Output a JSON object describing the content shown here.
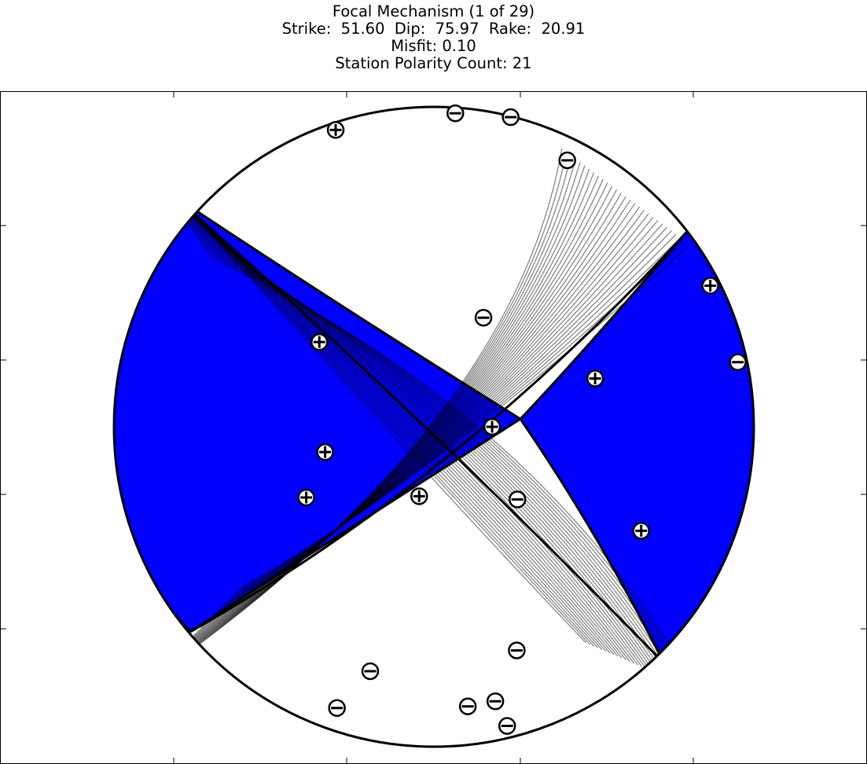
{
  "header": {
    "title": "Focal Mechanism (1 of 29)",
    "params": "Strike:  51.60  Dip:  75.97  Rake:  20.91",
    "misfit": "Misfit: 0.10",
    "station_count": "Station Polarity Count: 21"
  },
  "colors": {
    "fill": "#0000ff",
    "background": "#ffffff",
    "line": "#000000"
  },
  "chart_data": {
    "type": "scatter",
    "subtype": "focal-mechanism-beachball-lower-hemisphere",
    "title": "Focal Mechanism (1 of 29)",
    "best_solution": {
      "strike": 51.6,
      "dip": 75.97,
      "rake": 20.91,
      "misfit": 0.1
    },
    "solution_count": 29,
    "station_polarity_count": 21,
    "tick_labels": false,
    "stations": [
      {
        "polarity": "+",
        "x": -0.307,
        "y": 0.928
      },
      {
        "polarity": "-",
        "x": 0.067,
        "y": 0.98
      },
      {
        "polarity": "-",
        "x": 0.24,
        "y": 0.968
      },
      {
        "polarity": "-",
        "x": 0.417,
        "y": 0.833
      },
      {
        "polarity": "+",
        "x": 0.864,
        "y": 0.441
      },
      {
        "polarity": "-",
        "x": 0.155,
        "y": 0.341
      },
      {
        "polarity": "+",
        "x": -0.358,
        "y": 0.265
      },
      {
        "polarity": "+",
        "x": 0.504,
        "y": 0.151
      },
      {
        "polarity": "-",
        "x": 0.95,
        "y": 0.202
      },
      {
        "polarity": "+",
        "x": 0.182,
        "y": 0.0
      },
      {
        "polarity": "+",
        "x": -0.34,
        "y": -0.079
      },
      {
        "polarity": "+",
        "x": -0.399,
        "y": -0.221
      },
      {
        "polarity": "+",
        "x": -0.046,
        "y": -0.217
      },
      {
        "polarity": "-",
        "x": 0.261,
        "y": -0.227
      },
      {
        "polarity": "+",
        "x": 0.648,
        "y": -0.325
      },
      {
        "polarity": "-",
        "x": 0.259,
        "y": -0.699
      },
      {
        "polarity": "-",
        "x": -0.199,
        "y": -0.764
      },
      {
        "polarity": "-",
        "x": -0.303,
        "y": -0.879
      },
      {
        "polarity": "-",
        "x": 0.106,
        "y": -0.874
      },
      {
        "polarity": "-",
        "x": 0.192,
        "y": -0.858
      },
      {
        "polarity": "-",
        "x": 0.229,
        "y": -0.935
      }
    ]
  }
}
